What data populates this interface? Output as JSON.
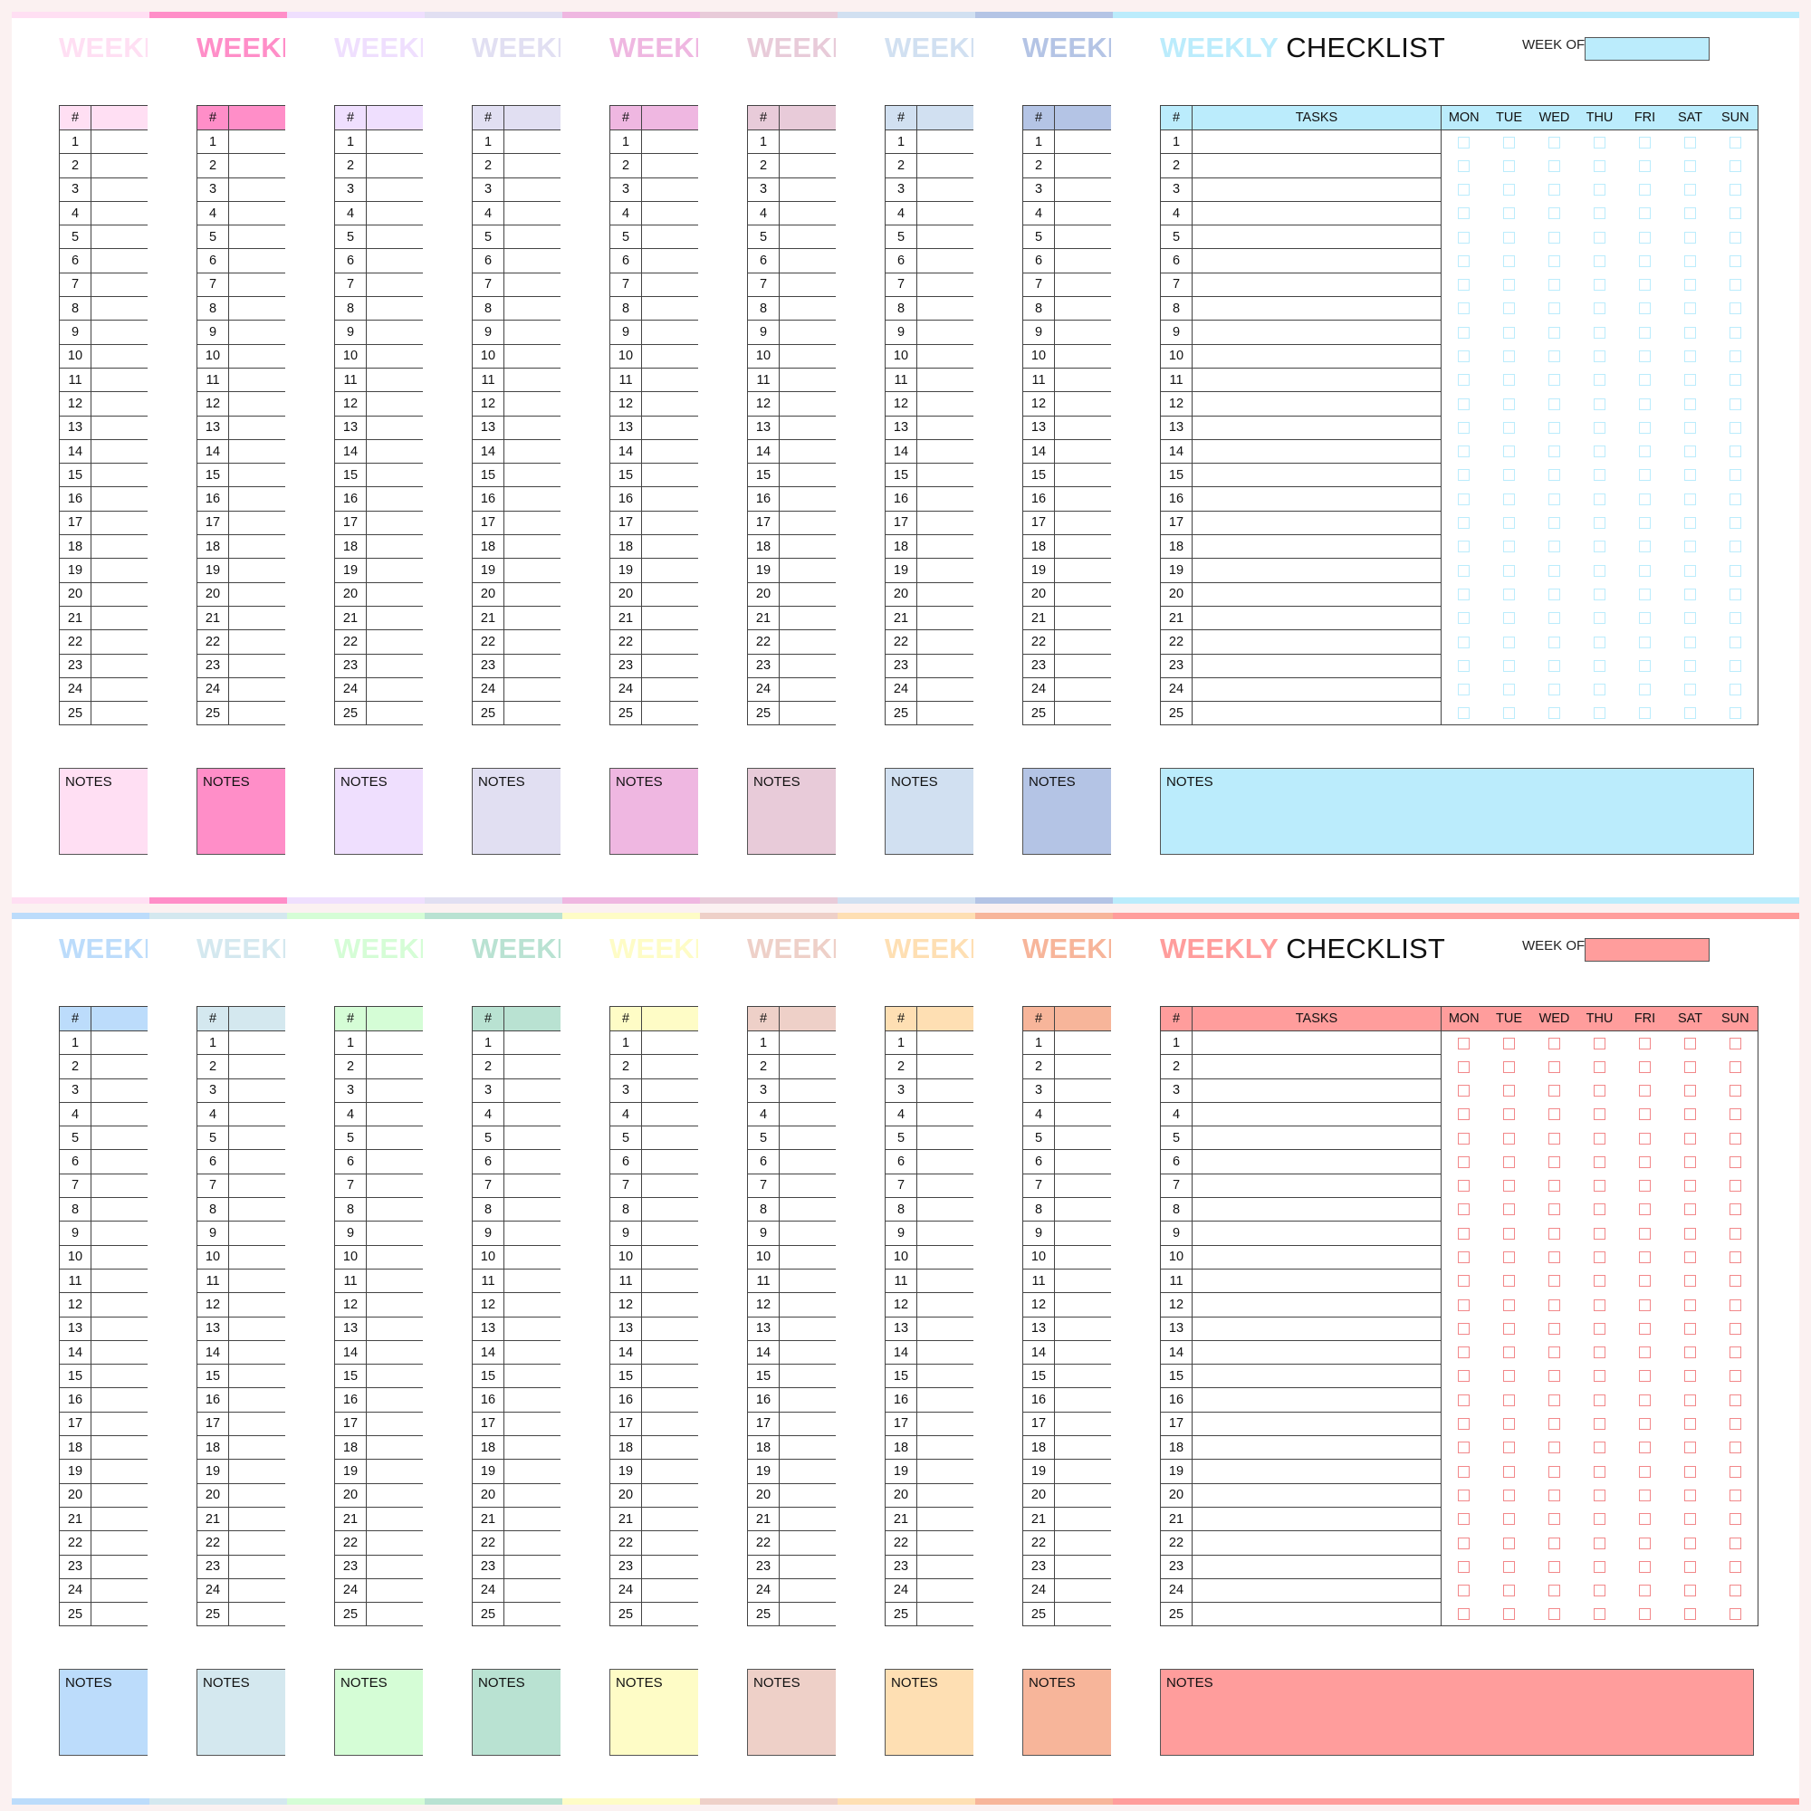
{
  "labels": {
    "weekly": "WEEKLY",
    "checklist": "CHECKLIST",
    "week_of": "WEEK OF:",
    "hash": "#",
    "tasks": "TASKS",
    "notes": "NOTES",
    "days": [
      "MON",
      "TUE",
      "WED",
      "THU",
      "FRI",
      "SAT",
      "SUN"
    ]
  },
  "row_numbers": [
    1,
    2,
    3,
    4,
    5,
    6,
    7,
    8,
    9,
    10,
    11,
    12,
    13,
    14,
    15,
    16,
    17,
    18,
    19,
    20,
    21,
    22,
    23,
    24,
    25
  ],
  "pages": [
    {
      "colors": [
        "#ffdff3",
        "#ff8ec8",
        "#efdffe",
        "#e1dff2",
        "#efb7e1",
        "#e8cbd9",
        "#d1e0f1",
        "#b4c4e5",
        "#bbecfc"
      ],
      "checkbox_color": "#bbecfc"
    },
    {
      "colors": [
        "#bcdcfb",
        "#d4e8ef",
        "#d5fdd6",
        "#b9e2d2",
        "#fefcc6",
        "#eed0c8",
        "#fedfb3",
        "#f7b59a",
        "#ff9d9c"
      ],
      "checkbox_color": "#f2888a"
    }
  ]
}
